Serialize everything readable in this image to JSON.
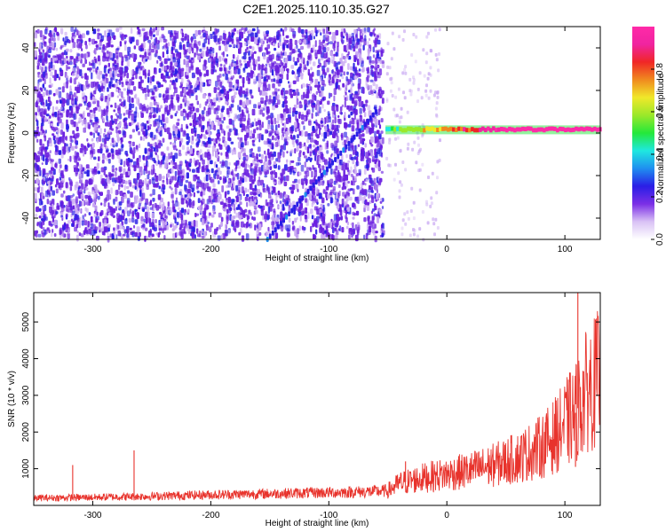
{
  "title": "C2E1.2025.110.10.35.G27",
  "colors": {
    "snr_line": "#e8332c",
    "frame": "#000000",
    "background": "#ffffff",
    "spectrogram_noise": "#6a1fe0",
    "spectrogram_noise_light": "#c9a9f2",
    "colormap": [
      "#ffffff",
      "#d9c2f5",
      "#7b2fe6",
      "#2a1ee6",
      "#1f8ff0",
      "#1fe8e0",
      "#24e83a",
      "#9be82a",
      "#f0e82a",
      "#f08a1f",
      "#f02626",
      "#f024a0",
      "#ff2aa8"
    ]
  },
  "chart_data": [
    {
      "type": "heatmap",
      "title": "C2E1.2025.110.10.35.G27",
      "xlabel": "Height of straight line (km)",
      "ylabel": "Frequency (Hz)",
      "xlim": [
        -350,
        130
      ],
      "ylim": [
        -50,
        50
      ],
      "x_ticks": [
        "-300",
        "-200",
        "-100",
        "0",
        "100"
      ],
      "x_tick_values": [
        -300,
        -200,
        -100,
        0,
        100
      ],
      "y_ticks": [
        "-40",
        "-20",
        "0",
        "20",
        "40"
      ],
      "y_tick_values": [
        -40,
        -20,
        0,
        20,
        40
      ],
      "colorbar": {
        "label": "Normalized spectral amplitude",
        "range": [
          0,
          1
        ],
        "ticks": [
          "0.0",
          "0.2",
          "0.4",
          "0.6",
          "0.8"
        ],
        "tick_values": [
          0.0,
          0.2,
          0.4,
          0.6,
          0.8
        ]
      },
      "features": [
        {
          "name": "noise region",
          "x_range": [
            -350,
            -52
          ],
          "y_range": [
            -50,
            50
          ],
          "amplitude_range": [
            0.05,
            0.2
          ]
        },
        {
          "name": "signal track",
          "x_range": [
            -52,
            130
          ],
          "frequency": 1.5,
          "amplitude_range": [
            0.4,
            1.0
          ]
        },
        {
          "name": "diagonal streak",
          "x": [
            -152,
            -60
          ],
          "y": [
            -50,
            10
          ],
          "amplitude": 0.2
        }
      ]
    },
    {
      "type": "line",
      "xlabel": "Height of straight line (km)",
      "ylabel": "SNR (10 * v/v)",
      "xlim": [
        -350,
        130
      ],
      "ylim": [
        0,
        5800
      ],
      "x_ticks": [
        "-300",
        "-200",
        "-100",
        "0",
        "100"
      ],
      "x_tick_values": [
        -300,
        -200,
        -100,
        0,
        100
      ],
      "y_ticks": [
        "1000",
        "2000",
        "3000",
        "4000",
        "5000"
      ],
      "y_tick_values": [
        1000,
        2000,
        3000,
        4000,
        5000
      ],
      "series": [
        {
          "x": [
            -350,
            -300,
            -250,
            -200,
            -150,
            -100,
            -60,
            -50,
            -40,
            -20,
            0,
            20,
            40,
            60,
            80,
            90,
            100,
            105,
            108,
            110,
            112,
            115,
            120,
            130
          ],
          "y": [
            200,
            220,
            250,
            290,
            320,
            350,
            380,
            400,
            600,
            750,
            850,
            950,
            1100,
            1300,
            1600,
            1850,
            2200,
            2400,
            2450,
            2600,
            2700,
            2900,
            3200,
            3500
          ]
        }
      ],
      "spikes": [
        {
          "x": -317,
          "y": 1100
        },
        {
          "x": -265,
          "y": 1500
        },
        {
          "x": -35,
          "y": 1200
        },
        {
          "x": 111,
          "y": 5800
        }
      ],
      "dip": {
        "x": 109,
        "y": 1050
      }
    }
  ]
}
